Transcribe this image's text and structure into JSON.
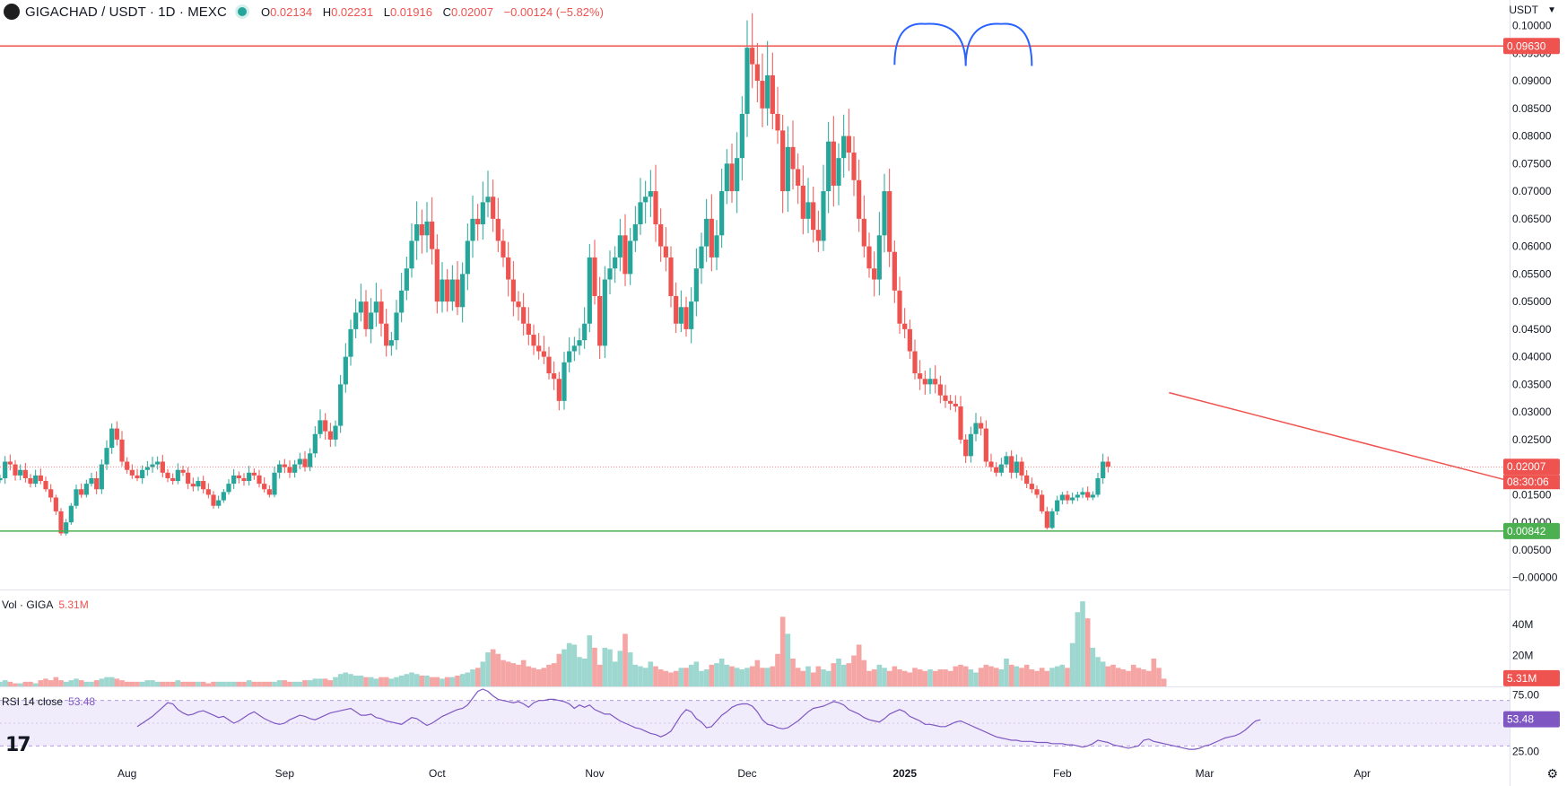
{
  "header": {
    "symbol": "GIGACHAD / USDT · 1D · MEXC",
    "o_label": "O",
    "o_value": "0.02134",
    "h_label": "H",
    "h_value": "0.02231",
    "l_label": "L",
    "l_value": "0.01916",
    "c_label": "C",
    "c_value": "0.02007",
    "change": "−0.00124 (−5.82%)",
    "currency": "USDT"
  },
  "colors": {
    "up": "#26a69a",
    "down": "#ef5350",
    "vol_up": "#9ed7cf",
    "vol_down": "#f5a5a3",
    "resistance": "#ef5350",
    "support": "#4caf50",
    "pattern": "#2962ff",
    "rsi": "#7e57c2",
    "rsi_band": "#f1ecfb"
  },
  "volume": {
    "label": "Vol · GIGA",
    "value": "5.31M"
  },
  "rsi": {
    "label": "RSI 14 close",
    "value": "53.48"
  },
  "chart_data": {
    "type": "candlestick",
    "title": "GIGACHAD / USDT · 1D · MEXC",
    "xlim": [
      "2024-07-07",
      "2025-04-30"
    ],
    "x_ticks": [
      "Aug",
      "Sep",
      "Oct",
      "Nov",
      "Dec",
      "2025",
      "Feb",
      "Mar",
      "Apr"
    ],
    "y_ticks": [
      "0.10000",
      "0.09500",
      "0.09000",
      "0.08500",
      "0.08000",
      "0.07500",
      "0.07000",
      "0.06500",
      "0.06000",
      "0.05500",
      "0.05000",
      "0.04500",
      "0.04000",
      "0.03500",
      "0.03000",
      "0.02500",
      "0.02000",
      "0.01500",
      "0.01000",
      "0.00500",
      "−0.00000"
    ],
    "ylim": [
      -0.002,
      0.1035
    ],
    "price_labels": {
      "resistance": "0.09630",
      "support": "0.00842",
      "last": "0.02007",
      "countdown": "08:30:06"
    },
    "resistance": 0.0963,
    "support": 0.00842,
    "last_price": 0.02007,
    "trendline": {
      "from": [
        "2025-02-22",
        0.0335
      ],
      "to": [
        "2025-04-30",
        0.0175
      ]
    },
    "double_top": [
      [
        "2024-12-30",
        0.0929
      ],
      [
        "2025-01-05",
        0.1003
      ],
      [
        "2025-01-13",
        0.0927
      ],
      [
        "2025-01-20",
        0.1003
      ],
      [
        "2025-01-26",
        0.0927
      ]
    ],
    "closes": [
      0.018,
      0.021,
      0.0205,
      0.0185,
      0.0195,
      0.018,
      0.017,
      0.0185,
      0.0175,
      0.016,
      0.0145,
      0.012,
      0.008,
      0.01,
      0.013,
      0.016,
      0.015,
      0.017,
      0.018,
      0.016,
      0.0205,
      0.0235,
      0.027,
      0.025,
      0.021,
      0.0195,
      0.0185,
      0.018,
      0.0195,
      0.02,
      0.0205,
      0.021,
      0.019,
      0.018,
      0.0175,
      0.0195,
      0.019,
      0.017,
      0.0165,
      0.0175,
      0.016,
      0.015,
      0.013,
      0.014,
      0.0155,
      0.017,
      0.0185,
      0.018,
      0.0175,
      0.019,
      0.0185,
      0.017,
      0.016,
      0.015,
      0.019,
      0.0205,
      0.02,
      0.019,
      0.0205,
      0.0215,
      0.02,
      0.0225,
      0.026,
      0.0285,
      0.0265,
      0.025,
      0.0275,
      0.035,
      0.04,
      0.045,
      0.048,
      0.05,
      0.045,
      0.048,
      0.05,
      0.046,
      0.042,
      0.043,
      0.048,
      0.052,
      0.056,
      0.061,
      0.064,
      0.062,
      0.0645,
      0.0595,
      0.05,
      0.054,
      0.05,
      0.054,
      0.049,
      0.055,
      0.061,
      0.065,
      0.064,
      0.068,
      0.069,
      0.065,
      0.061,
      0.058,
      0.054,
      0.05,
      0.049,
      0.046,
      0.044,
      0.042,
      0.041,
      0.04,
      0.037,
      0.036,
      0.032,
      0.039,
      0.041,
      0.042,
      0.043,
      0.046,
      0.058,
      0.051,
      0.042,
      0.054,
      0.056,
      0.058,
      0.062,
      0.055,
      0.061,
      0.064,
      0.068,
      0.069,
      0.07,
      0.064,
      0.06,
      0.058,
      0.051,
      0.046,
      0.049,
      0.045,
      0.05,
      0.056,
      0.06,
      0.065,
      0.058,
      0.062,
      0.07,
      0.075,
      0.07,
      0.076,
      0.084,
      0.096,
      0.093,
      0.09,
      0.085,
      0.091,
      0.084,
      0.081,
      0.07,
      0.078,
      0.074,
      0.071,
      0.065,
      0.068,
      0.063,
      0.061,
      0.07,
      0.079,
      0.071,
      0.076,
      0.08,
      0.077,
      0.072,
      0.065,
      0.06,
      0.056,
      0.054,
      0.062,
      0.07,
      0.059,
      0.052,
      0.046,
      0.045,
      0.041,
      0.037,
      0.036,
      0.035,
      0.036,
      0.035,
      0.033,
      0.032,
      0.0315,
      0.031,
      0.025,
      0.022,
      0.026,
      0.028,
      0.027,
      0.021,
      0.02,
      0.019,
      0.0205,
      0.022,
      0.019,
      0.021,
      0.0185,
      0.017,
      0.016,
      0.015,
      0.012,
      0.009,
      0.012,
      0.014,
      0.015,
      0.014,
      0.0145,
      0.015,
      0.0155,
      0.0145,
      0.015,
      0.018,
      0.021,
      0.0201
    ],
    "volumes": [
      3,
      4,
      3,
      2,
      2,
      3,
      3,
      2,
      4,
      5,
      4,
      6,
      4,
      3,
      4,
      5,
      4,
      3,
      3,
      4,
      5,
      6,
      6,
      5,
      4,
      3,
      3,
      3,
      3,
      4,
      4,
      3,
      3,
      3,
      3,
      4,
      3,
      3,
      3,
      3,
      3,
      2,
      3,
      3,
      3,
      3,
      3,
      3,
      3,
      4,
      3,
      3,
      3,
      3,
      3,
      4,
      4,
      3,
      3,
      3,
      4,
      4,
      5,
      5,
      5,
      4,
      6,
      8,
      9,
      8,
      7,
      7,
      6,
      6,
      5,
      6,
      6,
      5,
      6,
      7,
      8,
      9,
      8,
      7,
      7,
      6,
      6,
      5,
      6,
      6,
      7,
      8,
      9,
      11,
      12,
      16,
      22,
      24,
      21,
      17,
      16,
      15,
      14,
      17,
      13,
      12,
      11,
      12,
      14,
      15,
      21,
      24,
      28,
      27,
      19,
      18,
      33,
      25,
      14,
      25,
      24,
      16,
      23,
      34,
      22,
      14,
      13,
      12,
      16,
      13,
      11,
      10,
      9,
      10,
      12,
      12,
      14,
      16,
      10,
      11,
      14,
      15,
      18,
      14,
      13,
      12,
      11,
      12,
      13,
      17,
      12,
      12,
      13,
      21,
      45,
      34,
      18,
      12,
      10,
      13,
      9,
      13,
      11,
      10,
      15,
      18,
      14,
      15,
      20,
      27,
      17,
      10,
      11,
      14,
      12,
      10,
      13,
      11,
      10,
      9,
      12,
      11,
      10,
      11,
      10,
      11,
      11,
      10,
      13,
      14,
      13,
      11,
      9,
      12,
      14,
      13,
      12,
      11,
      18,
      14,
      13,
      12,
      14,
      11,
      10,
      12,
      10,
      12,
      13,
      14,
      12,
      28,
      48,
      55,
      44,
      25,
      19,
      16,
      13,
      14,
      12,
      11,
      10,
      14,
      12,
      11,
      10,
      18,
      12,
      5
    ],
    "rsi": [
      47,
      50,
      53,
      56,
      60,
      64,
      68,
      67,
      62,
      59,
      57,
      58,
      60,
      61,
      59,
      57,
      55,
      56,
      53,
      50,
      52,
      55,
      58,
      60,
      57,
      54,
      52,
      50,
      49,
      50,
      53,
      55,
      57,
      56,
      54,
      53,
      55,
      57,
      59,
      60,
      61,
      62,
      63,
      60,
      57,
      57,
      58,
      55,
      54,
      52,
      51,
      50,
      49,
      52,
      55,
      54,
      51,
      48,
      50,
      53,
      56,
      58,
      60,
      62,
      63,
      66,
      72,
      78,
      80,
      78,
      74,
      71,
      70,
      69,
      68,
      69,
      67,
      64,
      68,
      70,
      70,
      71,
      71,
      70,
      69,
      67,
      63,
      66,
      64,
      66,
      62,
      60,
      58,
      58,
      55,
      52,
      50,
      48,
      46,
      45,
      43,
      41,
      40,
      38,
      40,
      43,
      50,
      57,
      62,
      60,
      54,
      51,
      46,
      47,
      52,
      57,
      60,
      64,
      66,
      67,
      67,
      65,
      60,
      53,
      49,
      48,
      46,
      45,
      46,
      49,
      52,
      56,
      60,
      63,
      64,
      65,
      67,
      69,
      68,
      66,
      62,
      60,
      58,
      55,
      53,
      52,
      51,
      54,
      58,
      60,
      62,
      60,
      56,
      54,
      52,
      49,
      49,
      48,
      47,
      47,
      49,
      51,
      52,
      50,
      48,
      46,
      44,
      42,
      40,
      38,
      37,
      36,
      35,
      35,
      34,
      34,
      34,
      33,
      33,
      33,
      32,
      32,
      32,
      31,
      31,
      30,
      29,
      30,
      32,
      35,
      34,
      33,
      31,
      30,
      29,
      28,
      29,
      30,
      35,
      36,
      34,
      33,
      32,
      31,
      30,
      29,
      28,
      27,
      27,
      28,
      30,
      31,
      33,
      35,
      37,
      38,
      39,
      41,
      44,
      48,
      52,
      53
    ]
  }
}
